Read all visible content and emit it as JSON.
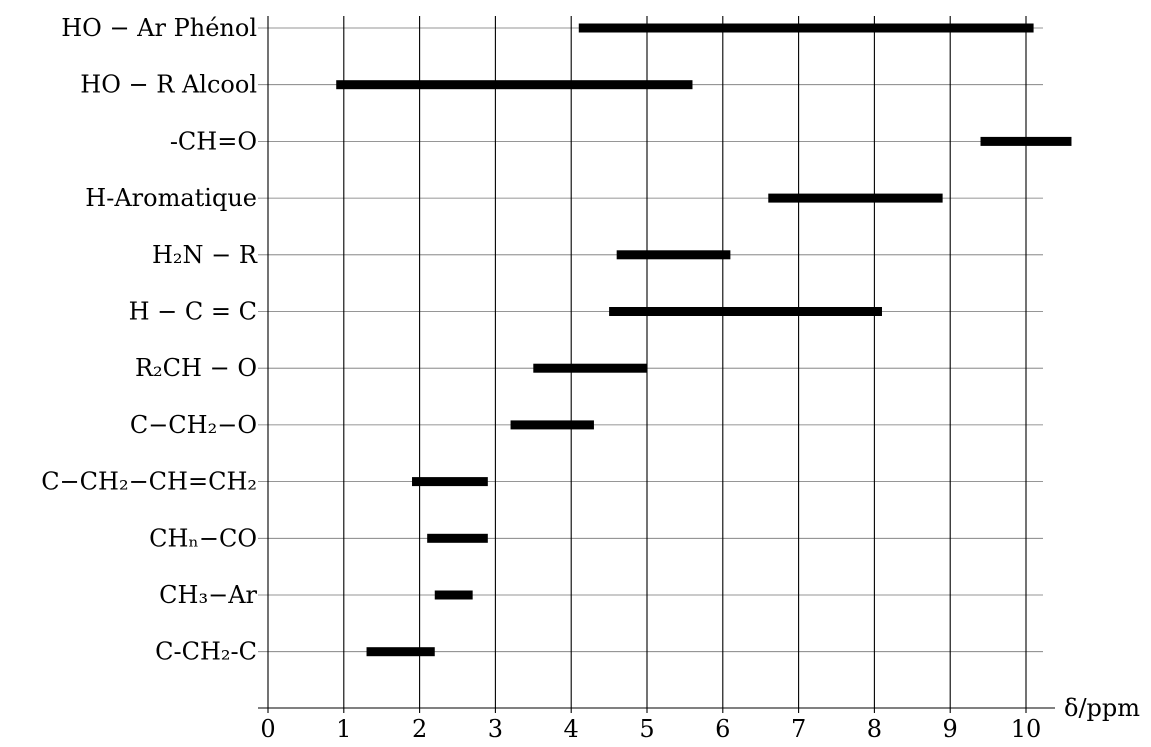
{
  "chart_data": {
    "type": "bar",
    "orientation": "horizontal-range",
    "xlabel": "δ/ppm",
    "xlim": [
      0,
      10.5
    ],
    "xticks": [
      "0",
      "1",
      "2",
      "3",
      "4",
      "5",
      "6",
      "7",
      "8",
      "9",
      "10"
    ],
    "grid": true,
    "rows": [
      {
        "label": "HO − Ar Phénol",
        "range": [
          4.1,
          10.1
        ]
      },
      {
        "label": "HO − R Alcool",
        "range": [
          0.9,
          5.6
        ]
      },
      {
        "label": "-CH=O",
        "range": [
          9.4,
          10.6
        ]
      },
      {
        "label": "H-Aromatique",
        "range": [
          6.6,
          8.9
        ]
      },
      {
        "label": "H₂N − R",
        "range": [
          4.6,
          6.1
        ]
      },
      {
        "label": "H − C = C",
        "range": [
          4.5,
          8.1
        ]
      },
      {
        "label": "R₂CH − O",
        "range": [
          3.5,
          5.0
        ]
      },
      {
        "label": "C−CH₂−O",
        "range": [
          3.2,
          4.3
        ]
      },
      {
        "label": "C−CH₂−CH=CH₂",
        "range": [
          1.9,
          2.9
        ]
      },
      {
        "label": "CHₙ−CO",
        "range": [
          2.1,
          2.9
        ]
      },
      {
        "label": "CH₃−Ar",
        "range": [
          2.2,
          2.7
        ]
      },
      {
        "label": "C-CH₂-C",
        "range": [
          1.3,
          2.2
        ]
      }
    ]
  },
  "colors": {
    "bar": "#000000",
    "grid": "#000000"
  }
}
